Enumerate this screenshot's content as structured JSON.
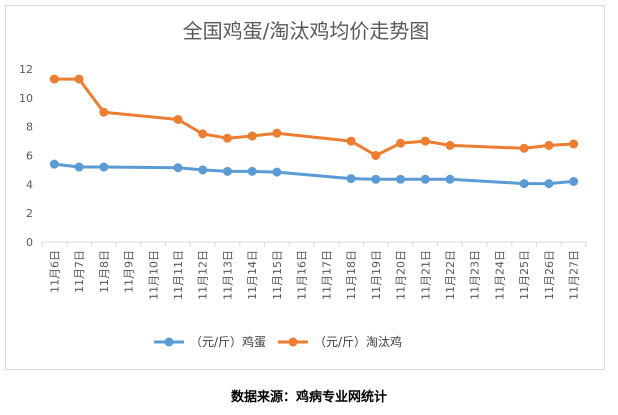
{
  "chart_data": {
    "type": "line",
    "title": "全国鸡蛋/淘汰鸡均价走势图",
    "categories": [
      "11月6日",
      "11月7日",
      "11月8日",
      "11月9日",
      "11月10日",
      "11月11日",
      "11月12日",
      "11月13日",
      "11月14日",
      "11月15日",
      "11月16日",
      "11月17日",
      "11月18日",
      "11月19日",
      "11月20日",
      "11月21日",
      "11月22日",
      "11月23日",
      "11月24日",
      "11月25日",
      "11月26日",
      "11月27日"
    ],
    "series": [
      {
        "name": "（元/斤）鸡蛋",
        "color": "#5b9bd5",
        "values": [
          5.4,
          5.2,
          5.2,
          null,
          null,
          5.15,
          5.0,
          4.9,
          4.9,
          4.85,
          null,
          null,
          4.4,
          4.35,
          4.35,
          4.35,
          4.35,
          null,
          null,
          4.05,
          4.05,
          4.2
        ]
      },
      {
        "name": "（元/斤）淘汰鸡",
        "color": "#ed7d31",
        "values": [
          11.3,
          11.3,
          9.0,
          null,
          null,
          8.5,
          7.5,
          7.2,
          7.35,
          7.55,
          null,
          null,
          7.0,
          6.0,
          6.85,
          7.0,
          6.7,
          null,
          null,
          6.5,
          6.7,
          6.8
        ]
      }
    ],
    "yticks": [
      "0",
      "2",
      "4",
      "6",
      "8",
      "10",
      "12"
    ],
    "ylim": [
      0,
      12
    ],
    "grid": false,
    "legend_position": "bottom"
  },
  "source_note": "数据来源：鸡病专业网统计"
}
